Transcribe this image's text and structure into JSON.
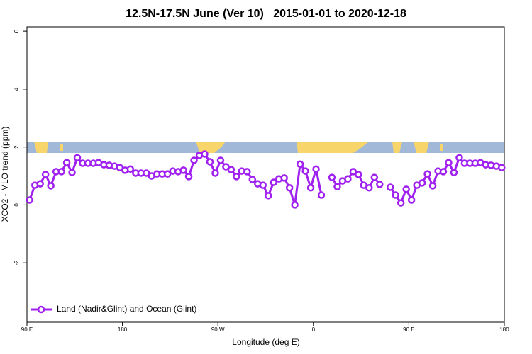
{
  "chart_data": {
    "type": "line",
    "title": "12.5N-17.5N June (Ver 10)   2015-01-01 to 2020-12-18",
    "x_label": "Longitude (deg E)",
    "y_label": "XCO2 - MLO trend (ppm)",
    "xlim": [
      90,
      540
    ],
    "ylim": [
      -4.05,
      6.15
    ],
    "xticks": [
      {
        "value": 90,
        "label": "90 E"
      },
      180,
      {
        "value": 270,
        "label": "90 W"
      },
      {
        "value": 360,
        "label": "0"
      },
      {
        "value": 450,
        "label": "90 E"
      },
      {
        "value": 540,
        "label": "180"
      }
    ],
    "yticks": [
      -2,
      0,
      2,
      4,
      6
    ],
    "legend": "bottomleft",
    "x": [
      92.5,
      97.5,
      102.5,
      107.5,
      112.5,
      117.5,
      122.5,
      127.5,
      132.5,
      137.5,
      142.5,
      147.5,
      152.5,
      157.5,
      162.5,
      167.5,
      172.5,
      177.5,
      182.5,
      187.5,
      192.5,
      197.5,
      202.5,
      207.5,
      212.5,
      217.5,
      222.5,
      227.5,
      232.5,
      237.5,
      242.5,
      247.5,
      252.5,
      257.5,
      262.5,
      267.5,
      272.5,
      277.5,
      282.5,
      287.5,
      292.5,
      297.5,
      302.5,
      307.5,
      312.5,
      317.5,
      322.5,
      327.5,
      332.5,
      337.5,
      342.5,
      347.5,
      352.5,
      357.5,
      362.5,
      367.5,
      372.5,
      377.5,
      382.5,
      387.5,
      392.5,
      397.5,
      402.5,
      407.5,
      412.5,
      417.5,
      422.5,
      427.5,
      432.5,
      437.5,
      442.5,
      447.5,
      452.5,
      457.5,
      462.5,
      467.5,
      472.5,
      477.5,
      482.5,
      487.5,
      492.5,
      497.5,
      502.5,
      507.5,
      512.5,
      517.5,
      522.5,
      527.5,
      532.5,
      537.5
    ],
    "series": [
      {
        "name": "Land (Nadir&Glint) and Ocean (Glint)",
        "color": "#a020f0",
        "values": [
          0.17,
          0.68,
          0.73,
          1.05,
          0.66,
          1.15,
          1.15,
          1.46,
          1.12,
          1.63,
          1.44,
          1.44,
          1.44,
          1.46,
          1.39,
          1.37,
          1.34,
          1.29,
          1.2,
          1.24,
          1.1,
          1.1,
          1.1,
          1.0,
          1.07,
          1.07,
          1.07,
          1.17,
          1.15,
          1.2,
          0.98,
          1.54,
          1.71,
          1.76,
          1.49,
          1.1,
          1.54,
          1.32,
          1.22,
          0.98,
          1.17,
          1.15,
          0.88,
          0.73,
          0.68,
          0.32,
          0.78,
          0.9,
          0.93,
          0.59,
          0.0,
          1.41,
          1.17,
          0.59,
          1.24,
          0.34,
          null,
          0.95,
          0.63,
          0.83,
          0.9,
          1.15,
          1.05,
          0.68,
          0.59,
          0.95,
          0.71,
          null,
          0.61,
          0.34,
          0.07,
          0.54,
          0.17,
          0.68,
          0.76,
          1.07,
          0.66,
          1.17,
          1.15,
          1.46,
          1.12,
          1.63,
          1.44,
          1.44,
          1.44,
          1.46,
          1.39,
          1.37,
          1.34,
          1.29
        ]
      }
    ]
  }
}
